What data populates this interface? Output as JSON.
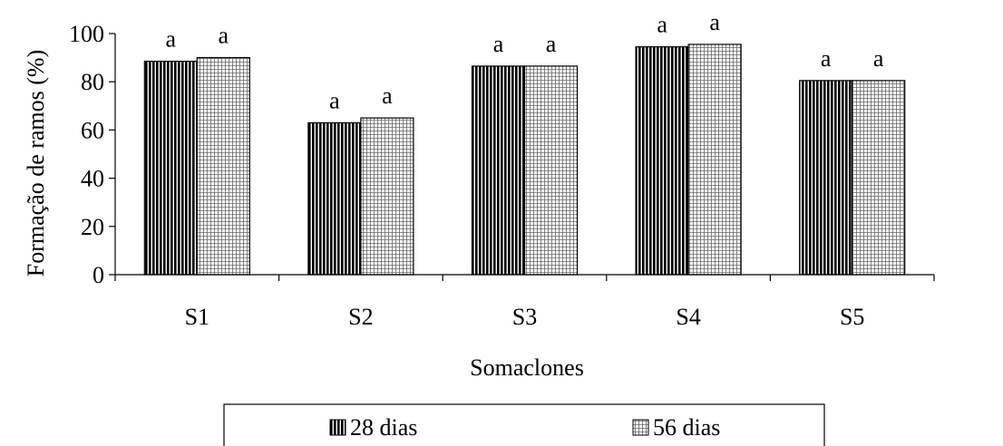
{
  "chart_data": {
    "type": "bar",
    "categories": [
      "S1",
      "S2",
      "S3",
      "S4",
      "S5"
    ],
    "series": [
      {
        "name": "28 dias",
        "values": [
          88.5,
          63,
          86.5,
          94.5,
          80.5
        ],
        "annotations": [
          "a",
          "a",
          "a",
          "a",
          "a"
        ],
        "pattern": "vertical-stripes"
      },
      {
        "name": "56 dias",
        "values": [
          90,
          65,
          86.5,
          95.5,
          80.5
        ],
        "annotations": [
          "a",
          "a",
          "a",
          "a",
          "a"
        ],
        "pattern": "grid"
      }
    ],
    "title": "",
    "xlabel": "Somaclones",
    "ylabel": "Formação de ramos (%)",
    "ylim": [
      0,
      100
    ],
    "yticks": [
      "0",
      "20",
      "40",
      "60",
      "80",
      "100"
    ],
    "grid": false,
    "legend_position": "bottom",
    "colors": {
      "bar_fill": "#ffffff",
      "stroke": "#000000"
    }
  }
}
